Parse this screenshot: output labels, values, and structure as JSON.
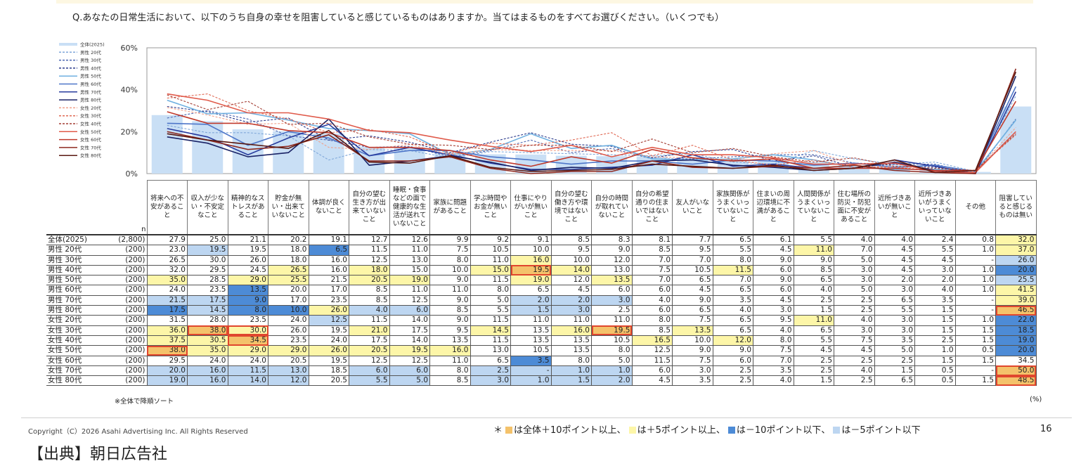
{
  "question": "Q.あなたの日常生活において、以下のうち自身の幸せを阻害していると感じているものはありますか。当てはまるものをすべてお選びください。（いくつでも）",
  "colors": {
    "hi": "#f4c26b",
    "mid": "#fdf6a8",
    "low": "#4d8bd6",
    "lowmid": "#bdd6f1",
    "box": "#e0462e"
  },
  "chart_data": {
    "type": "line",
    "bar_series": "全体(2025)",
    "y_ticks": [
      "60%",
      "40%",
      "20%",
      "0%"
    ],
    "ylim": [
      0,
      60
    ],
    "legend_position": "left",
    "categories": [
      "将来への不安があること",
      "収入が少ない・不安定なこと",
      "精神的なストレスがあること",
      "貯金が無い・出来ていないこと",
      "体調が良くないこと",
      "自分の望む生き方が出来ていないこと",
      "睡眠・食事などの面で健康的な生活が送れていないこと",
      "家族に問題があること",
      "学ぶ時間やお金が無いこと",
      "仕事にやりがいが無いこと",
      "自分の望む働き方や環境ではないこと",
      "自分の時間が取れていないこと",
      "自分の希望通りの住まいではないこと",
      "友人がいないこと",
      "家族関係がうまくいっていないこと",
      "住まいの周辺環境に不満があること",
      "人間関係がうまくいっていないこと",
      "住む場所の防災・防犯面に不安があること",
      "近所づきあいが無いこと",
      "近所づきあいがうまくいっていないこと",
      "その他",
      "阻害していると感じるものは無い"
    ],
    "series": [
      {
        "name": "全体(2025)",
        "n": "(2,800)",
        "color": "#c9dff5",
        "dash": "",
        "values": [
          27.9,
          25.0,
          21.1,
          20.2,
          19.1,
          12.7,
          12.6,
          9.9,
          9.2,
          9.1,
          8.5,
          8.3,
          8.1,
          7.7,
          6.5,
          6.1,
          5.5,
          4.0,
          4.0,
          2.4,
          0.8,
          32.0
        ],
        "cls": [
          "",
          "",
          "",
          "",
          "",
          "",
          "",
          "",
          "",
          "",
          "",
          "",
          "",
          "",
          "",
          "",
          "",
          "",
          "",
          "",
          "",
          "mid"
        ],
        "box": []
      },
      {
        "name": "男性 20代",
        "n": "(200)",
        "color": "#7fa7d9",
        "dash": "3,2",
        "values": [
          23.0,
          19.5,
          19.5,
          18.0,
          6.5,
          11.5,
          11.0,
          7.5,
          10.5,
          10.0,
          9.5,
          9.0,
          8.5,
          9.5,
          5.5,
          4.5,
          11.0,
          7.0,
          4.5,
          5.5,
          1.0,
          37.0
        ],
        "cls": [
          "",
          "lowmid",
          "",
          "",
          "low",
          "",
          "",
          "",
          "",
          "",
          "",
          "",
          "",
          "",
          "",
          "",
          "mid",
          "",
          "",
          "",
          "",
          "mid"
        ],
        "box": []
      },
      {
        "name": "男性 30代",
        "n": "(200)",
        "color": "#4a64b0",
        "dash": "3,2",
        "values": [
          26.5,
          30.0,
          26.0,
          18.0,
          16.0,
          12.5,
          13.0,
          8.0,
          11.0,
          16.0,
          10.0,
          12.0,
          7.0,
          7.0,
          8.0,
          9.0,
          9.0,
          5.0,
          4.5,
          4.5,
          null,
          26.0
        ],
        "cls": [
          "",
          "",
          "",
          "",
          "",
          "",
          "",
          "",
          "",
          "mid",
          "",
          "",
          "",
          "",
          "",
          "",
          "",
          "",
          "",
          "",
          "",
          "lowmid"
        ],
        "box": []
      },
      {
        "name": "男性 40代",
        "n": "(200)",
        "color": "#2a3a8c",
        "dash": "3,2",
        "values": [
          32.0,
          29.5,
          24.5,
          26.5,
          16.0,
          18.0,
          15.0,
          10.0,
          15.0,
          19.5,
          14.0,
          13.0,
          7.5,
          10.5,
          11.5,
          6.0,
          8.5,
          3.0,
          4.5,
          3.0,
          1.0,
          20.0
        ],
        "cls": [
          "",
          "",
          "",
          "mid",
          "",
          "mid",
          "",
          "",
          "mid",
          "hi",
          "mid",
          "",
          "",
          "",
          "mid",
          "",
          "",
          "",
          "",
          "",
          "",
          "low"
        ],
        "box": [
          9
        ]
      },
      {
        "name": "男性 50代",
        "n": "(200)",
        "color": "#6fb0e0",
        "dash": "",
        "values": [
          35.0,
          28.5,
          29.0,
          25.5,
          21.5,
          20.5,
          19.0,
          9.0,
          11.5,
          19.0,
          12.0,
          13.5,
          7.0,
          6.5,
          7.0,
          9.0,
          6.5,
          3.0,
          2.0,
          2.0,
          1.0,
          25.5
        ],
        "cls": [
          "mid",
          "",
          "mid",
          "mid",
          "",
          "mid",
          "mid",
          "",
          "",
          "mid",
          "",
          "mid",
          "",
          "",
          "",
          "",
          "",
          "",
          "",
          "",
          "",
          "lowmid"
        ],
        "box": []
      },
      {
        "name": "男性 60代",
        "n": "(200)",
        "color": "#4f77c9",
        "dash": "",
        "values": [
          24.0,
          23.5,
          13.5,
          20.0,
          17.0,
          8.5,
          11.0,
          11.0,
          8.0,
          6.5,
          4.5,
          6.0,
          6.0,
          4.5,
          6.5,
          6.0,
          4.0,
          5.0,
          3.0,
          4.0,
          1.0,
          41.5
        ],
        "cls": [
          "",
          "",
          "low",
          "",
          "",
          "",
          "",
          "",
          "",
          "",
          "",
          "",
          "",
          "",
          "",
          "",
          "",
          "",
          "",
          "",
          "",
          "mid"
        ],
        "box": []
      },
      {
        "name": "男性 70代",
        "n": "(200)",
        "color": "#283c9e",
        "dash": "",
        "values": [
          21.5,
          17.5,
          9.0,
          17.0,
          23.5,
          8.5,
          12.5,
          9.0,
          5.0,
          2.0,
          2.0,
          3.0,
          4.0,
          9.0,
          3.5,
          4.5,
          2.5,
          2.5,
          6.5,
          3.5,
          null,
          39.0
        ],
        "cls": [
          "lowmid",
          "lowmid",
          "low",
          "",
          "",
          "",
          "",
          "",
          "",
          "lowmid",
          "lowmid",
          "lowmid",
          "",
          "",
          "",
          "",
          "",
          "",
          "",
          "",
          "",
          "mid"
        ],
        "box": []
      },
      {
        "name": "男性 80代",
        "n": "(200)",
        "color": "#1a2366",
        "dash": "",
        "values": [
          17.5,
          14.5,
          8.0,
          10.0,
          26.0,
          4.0,
          6.0,
          8.5,
          5.5,
          1.5,
          3.0,
          2.5,
          6.0,
          6.5,
          4.0,
          3.0,
          1.5,
          2.5,
          5.5,
          1.5,
          null,
          46.5
        ],
        "cls": [
          "low",
          "lowmid",
          "low",
          "low",
          "mid",
          "lowmid",
          "lowmid",
          "",
          "",
          "lowmid",
          "lowmid",
          "",
          "",
          "",
          "",
          "",
          "",
          "",
          "",
          "",
          "",
          "hi"
        ],
        "box": [
          21
        ]
      },
      {
        "name": "女性 20代",
        "n": "(200)",
        "color": "#f0a08a",
        "dash": "3,2",
        "values": [
          31.5,
          28.0,
          23.5,
          24.0,
          12.5,
          11.5,
          14.0,
          9.0,
          11.5,
          11.0,
          11.0,
          11.0,
          8.0,
          7.5,
          6.5,
          9.5,
          11.0,
          4.0,
          3.0,
          1.5,
          1.0,
          22.0
        ],
        "cls": [
          "",
          "",
          "",
          "",
          "lowmid",
          "",
          "",
          "",
          "",
          "",
          "",
          "",
          "",
          "",
          "",
          "",
          "mid",
          "",
          "",
          "",
          "",
          "low"
        ],
        "box": []
      },
      {
        "name": "女性 30代",
        "n": "(200)",
        "color": "#e06a55",
        "dash": "3,2",
        "values": [
          36.0,
          38.0,
          30.0,
          26.0,
          19.5,
          21.0,
          17.5,
          9.5,
          14.5,
          13.5,
          16.0,
          19.5,
          8.5,
          13.5,
          6.5,
          4.0,
          6.5,
          3.0,
          3.0,
          1.5,
          1.5,
          18.5
        ],
        "cls": [
          "mid",
          "hi",
          "mid",
          "",
          "",
          "mid",
          "",
          "",
          "mid",
          "",
          "mid",
          "hi",
          "",
          "mid",
          "",
          "",
          "",
          "",
          "",
          "",
          "",
          "low"
        ],
        "box": [
          1,
          2,
          11
        ]
      },
      {
        "name": "女性 40代",
        "n": "(200)",
        "color": "#a33d33",
        "dash": "3,2",
        "values": [
          37.5,
          30.5,
          34.5,
          23.5,
          24.0,
          17.5,
          14.0,
          13.5,
          11.5,
          13.5,
          13.5,
          10.5,
          16.5,
          10.0,
          12.0,
          8.0,
          5.5,
          7.5,
          3.5,
          2.5,
          1.5,
          19.0
        ],
        "cls": [
          "mid",
          "mid",
          "hi",
          "",
          "",
          "",
          "",
          "",
          "",
          "",
          "",
          "",
          "mid",
          "",
          "mid",
          "",
          "",
          "",
          "",
          "",
          "",
          "low"
        ],
        "box": [
          2
        ]
      },
      {
        "name": "女性 50代",
        "n": "(200)",
        "color": "#e05a4a",
        "dash": "",
        "values": [
          38.0,
          35.0,
          29.0,
          29.0,
          26.0,
          20.5,
          19.5,
          16.0,
          13.0,
          10.5,
          13.5,
          8.0,
          12.5,
          9.0,
          9.0,
          7.5,
          4.5,
          4.5,
          5.0,
          1.0,
          0.5,
          20.0
        ],
        "cls": [
          "hi",
          "mid",
          "mid",
          "mid",
          "mid",
          "mid",
          "mid",
          "mid",
          "",
          "",
          "",
          "",
          "",
          "",
          "",
          "",
          "",
          "",
          "",
          "",
          "",
          "low"
        ],
        "box": [
          0
        ]
      },
      {
        "name": "女性 60代",
        "n": "(200)",
        "color": "#c0392b",
        "dash": "",
        "values": [
          29.5,
          24.0,
          24.0,
          20.5,
          19.5,
          12.5,
          12.5,
          11.0,
          6.5,
          3.5,
          8.0,
          5.0,
          11.5,
          7.5,
          6.0,
          7.0,
          2.5,
          2.5,
          2.5,
          1.5,
          1.5,
          34.5
        ],
        "cls": [
          "",
          "",
          "",
          "",
          "",
          "",
          "",
          "",
          "",
          "low",
          "",
          "",
          "",
          "",
          "",
          "",
          "",
          "",
          "",
          "",
          "",
          ""
        ],
        "box": []
      },
      {
        "name": "女性 70代",
        "n": "(200)",
        "color": "#8e2a20",
        "dash": "",
        "values": [
          20.0,
          16.0,
          11.5,
          13.0,
          18.5,
          6.0,
          6.0,
          8.0,
          2.5,
          null,
          1.0,
          1.0,
          6.0,
          3.0,
          2.5,
          3.5,
          2.5,
          4.0,
          1.5,
          0.5,
          null,
          50.0
        ],
        "cls": [
          "lowmid",
          "lowmid",
          "lowmid",
          "lowmid",
          "",
          "lowmid",
          "lowmid",
          "",
          "lowmid",
          "lowmid",
          "lowmid",
          "lowmid",
          "",
          "",
          "",
          "",
          "",
          "",
          "",
          "",
          "",
          "hi"
        ],
        "box": [
          21
        ]
      },
      {
        "name": "女性 80代",
        "n": "(200)",
        "color": "#5a1810",
        "dash": "",
        "values": [
          19.0,
          16.0,
          14.0,
          12.0,
          20.5,
          5.5,
          5.0,
          8.5,
          3.0,
          1.0,
          1.5,
          2.0,
          4.5,
          3.5,
          2.5,
          4.0,
          1.5,
          2.5,
          6.5,
          0.5,
          1.5,
          48.5
        ],
        "cls": [
          "lowmid",
          "lowmid",
          "lowmid",
          "lowmid",
          "",
          "lowmid",
          "lowmid",
          "",
          "lowmid",
          "lowmid",
          "lowmid",
          "lowmid",
          "",
          "",
          "",
          "",
          "",
          "",
          "",
          "",
          "",
          "hi"
        ],
        "box": [
          21
        ]
      }
    ]
  },
  "table": {
    "n_header": "n",
    "headers": [
      "将来への不安があること",
      "収入が少ない・不安定なこと",
      "精神的なストレスがあること",
      "貯金が無い・出来ていないこと",
      "体調が良くないこと",
      "自分の望む生き方が出来ていないこと",
      "睡眠・食事などの面で健康的な生活が送れていないこと",
      "家族に問題があること",
      "学ぶ時間やお金が無いこと",
      "仕事にやりがいが無いこと",
      "自分の望む働き方や環境ではないこと",
      "自分の時間が取れていないこと",
      "自分の希望通りの住まいではないこと",
      "友人がいないこと",
      "家族関係がうまくいっていないこと",
      "住まいの周辺環境に不満があること",
      "人間関係がうまくいっていないこと",
      "住む場所の防災・防犯面に不安があること",
      "近所づきあいが無いこと",
      "近所づきあいがうまくいっていないこと",
      "その他",
      "阻害していると感じるものは無い"
    ],
    "dash_text": "-"
  },
  "footer": {
    "sort_note": "※全体で降順ソート",
    "unit": "(%)",
    "copyright": "Copyright（C）2026 Asahi Advertising Inc. All Rights Reserved",
    "legend_star": "＊",
    "legend_hi": "は全体＋10ポイント以上、",
    "legend_mid": "は＋5ポイント以上、",
    "legend_low": "は－10ポイント以下、",
    "legend_lowmid": "は－5ポイント以下",
    "page_number": "16",
    "source": "【出典】朝日広告社"
  }
}
